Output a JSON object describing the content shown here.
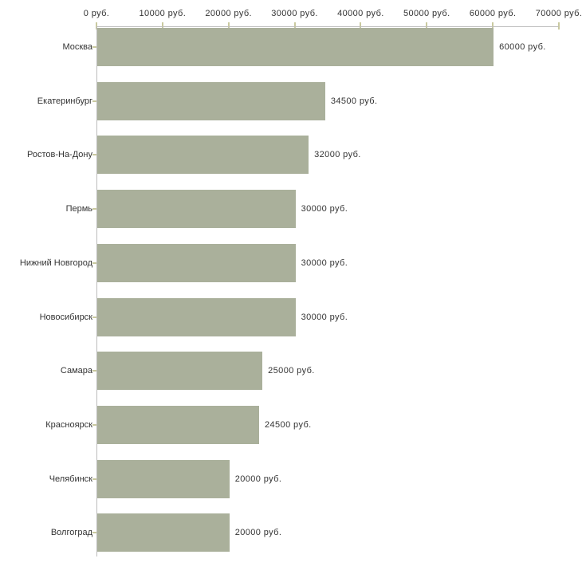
{
  "chart_data": {
    "type": "bar",
    "orientation": "horizontal",
    "title": "",
    "xlabel": "",
    "ylabel": "",
    "unit": "руб.",
    "categories": [
      "Москва",
      "Екатеринбург",
      "Ростов-На-Дону",
      "Пермь",
      "Нижний Новгород",
      "Новосибирск",
      "Самара",
      "Красноярск",
      "Челябинск",
      "Волгоград"
    ],
    "values": [
      60000,
      34500,
      32000,
      30000,
      30000,
      30000,
      25000,
      24500,
      20000,
      20000
    ],
    "value_labels": [
      "60000 руб.",
      "34500 руб.",
      "32000 руб.",
      "30000 руб.",
      "30000 руб.",
      "30000 руб.",
      "25000 руб.",
      "24500 руб.",
      "20000 руб.",
      "20000 руб."
    ],
    "xlim": [
      0,
      70000
    ],
    "x_ticks": [
      0,
      10000,
      20000,
      30000,
      40000,
      50000,
      60000,
      70000
    ],
    "x_tick_labels": [
      "0 руб.",
      "10000 руб.",
      "20000 руб.",
      "30000 руб.",
      "40000 руб.",
      "50000 руб.",
      "60000 руб.",
      "70000 руб."
    ],
    "grid": false,
    "legend": null,
    "colors": {
      "bar": "#aab09b",
      "axis_line": "#bdbdbd",
      "tick_mark": "#c9c99f",
      "text": "#333333",
      "background": "#ffffff"
    }
  }
}
